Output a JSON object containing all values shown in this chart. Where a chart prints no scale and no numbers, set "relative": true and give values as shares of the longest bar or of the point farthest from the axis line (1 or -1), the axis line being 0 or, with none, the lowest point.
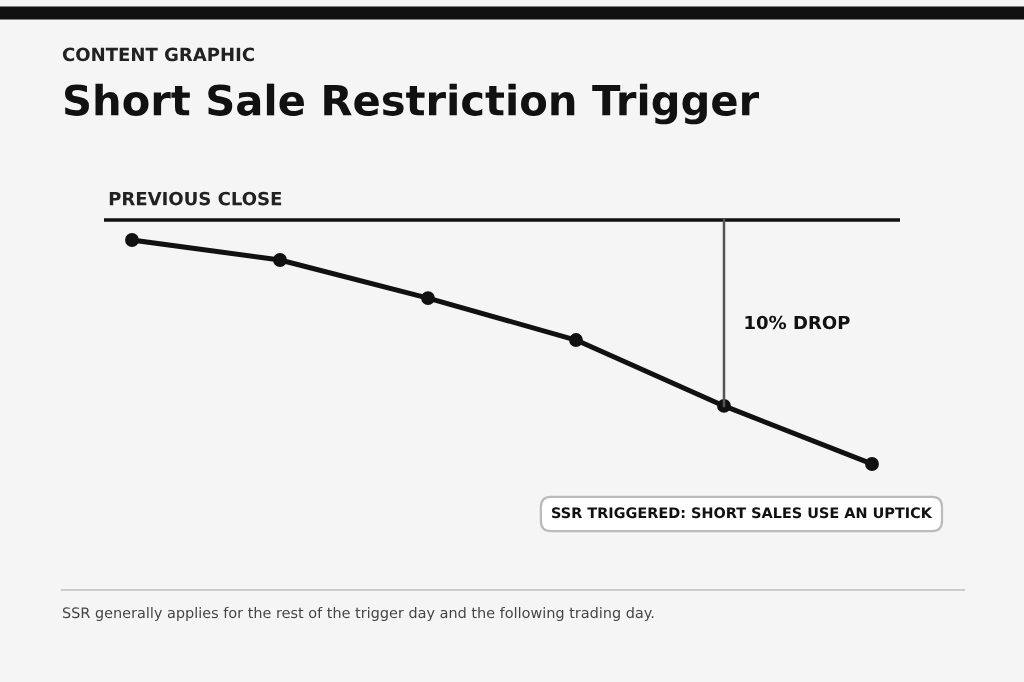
{
  "chart_data": {
    "type": "line",
    "title": "Short Sale Restriction Trigger",
    "subtitle": "CONTENT GRAPHIC",
    "categories": [
      null,
      null,
      null,
      null,
      null,
      null
    ],
    "relative": true,
    "series": [
      {
        "color": "#111111",
        "values": [
          -0.082,
          -0.164,
          -0.32,
          -0.492,
          -0.762,
          -1.0
        ]
      }
    ],
    "ref_lines": [
      {
        "axis": "y",
        "value": 0,
        "label": "PREVIOUS CLOSE",
        "color": "#111111"
      }
    ],
    "annotations": [
      "10% DROP",
      "SSR TRIGGERED: SHORT SALES USE AN UPTICK",
      "SSR generally applies for the rest of the trigger day and the following trading day."
    ],
    "marker": "circle",
    "line_style": "solid",
    "grid": false,
    "legend": false
  }
}
